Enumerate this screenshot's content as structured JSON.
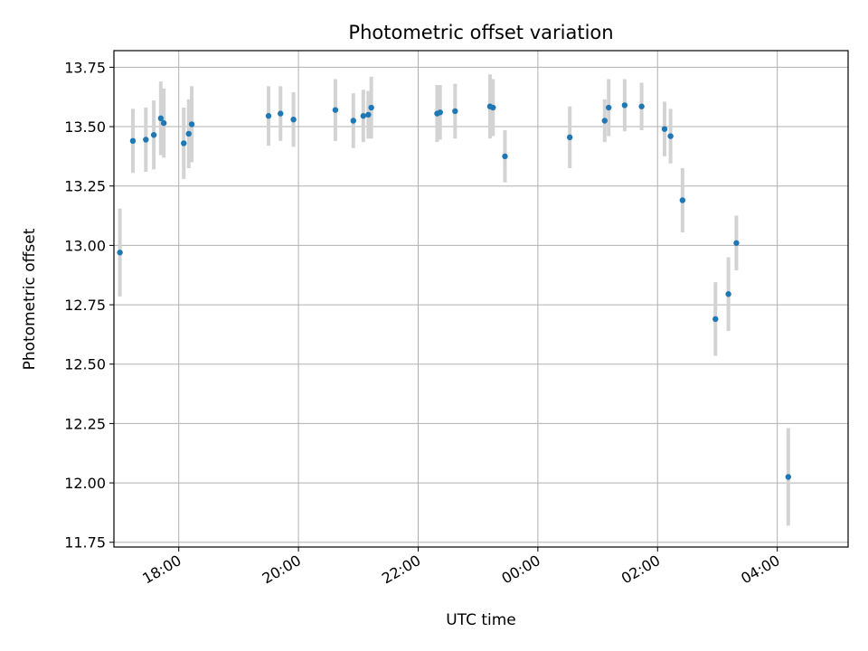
{
  "chart_data": {
    "type": "scatter",
    "title": "Photometric offset variation",
    "xlabel": "UTC time",
    "ylabel": "Photometric offset",
    "x_axis": "time",
    "xlim": [
      "16:55",
      "05:11+1"
    ],
    "ylim": [
      11.73,
      13.82
    ],
    "yticks": [
      11.75,
      12.0,
      12.25,
      12.5,
      12.75,
      13.0,
      13.25,
      13.5,
      13.75
    ],
    "ytick_labels": [
      "11.75",
      "12.00",
      "12.25",
      "12.50",
      "12.75",
      "13.00",
      "13.25",
      "13.50",
      "13.75"
    ],
    "xticks": [
      "18:00",
      "20:00",
      "22:00",
      "00:00",
      "02:00",
      "04:00"
    ],
    "grid": true,
    "marker_color": "#1f77b4",
    "errorbar_color": "#d3d3d3",
    "series": [
      {
        "points": [
          {
            "t": "17:01",
            "y": 12.97,
            "err": 0.185
          },
          {
            "t": "17:14",
            "y": 13.44,
            "err": 0.135
          },
          {
            "t": "17:27",
            "y": 13.445,
            "err": 0.135
          },
          {
            "t": "17:35",
            "y": 13.465,
            "err": 0.145
          },
          {
            "t": "17:42",
            "y": 13.535,
            "err": 0.155
          },
          {
            "t": "17:45",
            "y": 13.515,
            "err": 0.145
          },
          {
            "t": "18:05",
            "y": 13.43,
            "err": 0.15
          },
          {
            "t": "18:10",
            "y": 13.47,
            "err": 0.145
          },
          {
            "t": "18:13",
            "y": 13.51,
            "err": 0.16
          },
          {
            "t": "19:30",
            "y": 13.545,
            "err": 0.125
          },
          {
            "t": "19:42",
            "y": 13.555,
            "err": 0.115
          },
          {
            "t": "19:55",
            "y": 13.53,
            "err": 0.115
          },
          {
            "t": "20:37",
            "y": 13.57,
            "err": 0.13
          },
          {
            "t": "20:55",
            "y": 13.525,
            "err": 0.115
          },
          {
            "t": "21:05",
            "y": 13.545,
            "err": 0.11
          },
          {
            "t": "21:10",
            "y": 13.55,
            "err": 0.1
          },
          {
            "t": "21:13",
            "y": 13.58,
            "err": 0.13
          },
          {
            "t": "22:19",
            "y": 13.555,
            "err": 0.12
          },
          {
            "t": "22:22",
            "y": 13.56,
            "err": 0.115
          },
          {
            "t": "22:37",
            "y": 13.565,
            "err": 0.115
          },
          {
            "t": "23:12",
            "y": 13.585,
            "err": 0.135
          },
          {
            "t": "23:15",
            "y": 13.58,
            "err": 0.12
          },
          {
            "t": "23:27",
            "y": 13.375,
            "err": 0.11
          },
          {
            "t": "00:32+1",
            "y": 13.455,
            "err": 0.13
          },
          {
            "t": "01:07+1",
            "y": 13.525,
            "err": 0.09
          },
          {
            "t": "01:11+1",
            "y": 13.58,
            "err": 0.12
          },
          {
            "t": "01:27+1",
            "y": 13.59,
            "err": 0.11
          },
          {
            "t": "01:44+1",
            "y": 13.585,
            "err": 0.1
          },
          {
            "t": "02:07+1",
            "y": 13.49,
            "err": 0.115
          },
          {
            "t": "02:13+1",
            "y": 13.46,
            "err": 0.115
          },
          {
            "t": "02:25+1",
            "y": 13.19,
            "err": 0.135
          },
          {
            "t": "02:58+1",
            "y": 12.69,
            "err": 0.155
          },
          {
            "t": "03:11+1",
            "y": 12.795,
            "err": 0.155
          },
          {
            "t": "03:19+1",
            "y": 13.01,
            "err": 0.115
          },
          {
            "t": "04:11+1",
            "y": 12.025,
            "err": 0.205
          }
        ]
      }
    ]
  }
}
